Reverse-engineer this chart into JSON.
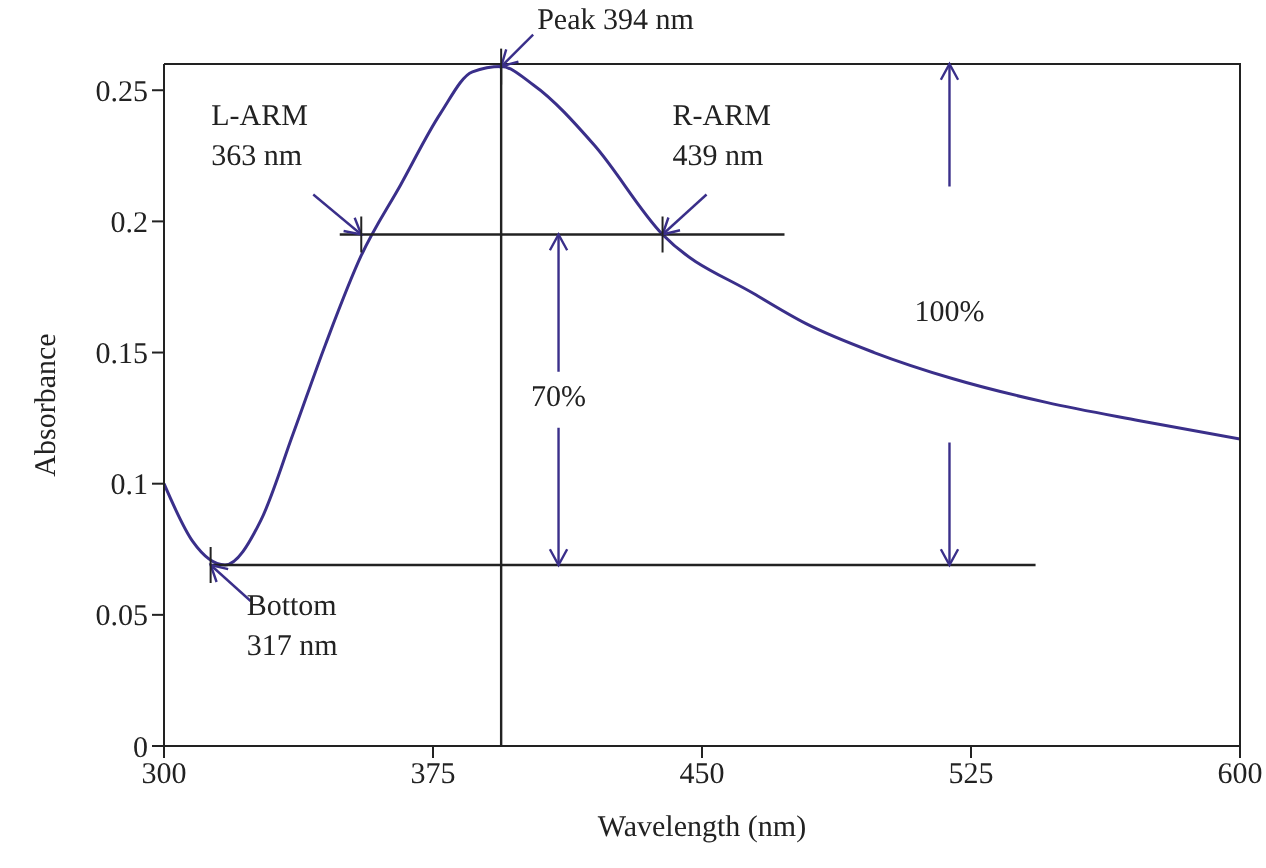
{
  "chart_data": {
    "type": "line",
    "xlabel": "Wavelength (nm)",
    "ylabel": "Absorbance",
    "xlim": [
      300,
      600
    ],
    "xticks": [
      300,
      375,
      450,
      525,
      600
    ],
    "ylim": [
      0,
      0.26
    ],
    "yticks": [
      0,
      0.05,
      0.1,
      0.15,
      0.2,
      0.25
    ],
    "grid": false,
    "legend": false,
    "marker": "none",
    "line_style": "solid",
    "series": [
      {
        "color": "#3a2f8a",
        "x": [
          300,
          308,
          317,
          327,
          336,
          345,
          355,
          366,
          377,
          386,
          394,
          403,
          420,
          439,
          465,
          479,
          498,
          520,
          546,
          572,
          600
        ],
        "values": [
          0.1,
          0.078,
          0.069,
          0.086,
          0.119,
          0.153,
          0.187,
          0.214,
          0.241,
          0.257,
          0.259,
          0.252,
          0.229,
          0.195,
          0.172,
          0.161,
          0.15,
          0.14,
          0.131,
          0.124,
          0.117
        ]
      },
      {
        "color": "#222222",
        "x": [
          349,
          473
        ],
        "values": [
          0.195,
          0.195
        ]
      },
      {
        "color": "#222222",
        "x": [
          313,
          543
        ],
        "values": [
          0.069,
          0.069
        ]
      },
      {
        "color": "#222222",
        "x": [
          394,
          394
        ],
        "values": [
          0,
          0.259
        ]
      }
    ],
    "annotations": [
      {
        "text": "Peak 394 nm",
        "x": 394,
        "y": 0.259
      },
      {
        "text": "L-ARM\n363 nm",
        "x": 355,
        "y": 0.195
      },
      {
        "text": "R-ARM\n439 nm",
        "x": 439,
        "y": 0.195
      },
      {
        "text": "Bottom\n317 nm",
        "x": 313,
        "y": 0.069
      },
      {
        "text": "70%",
        "x": 410,
        "y": 0.195
      },
      "100%"
    ]
  }
}
